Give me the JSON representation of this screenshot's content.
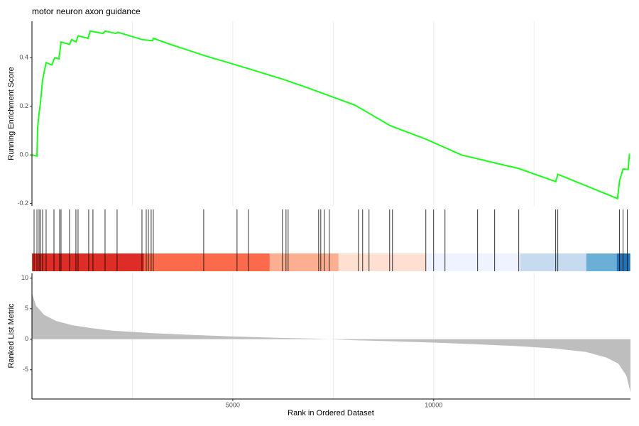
{
  "chart_data": [
    {
      "type": "line",
      "title": "motor neuron axon guidance",
      "ylabel": "Running Enrichment Score",
      "color": "#1aff1a",
      "xlim": [
        0,
        14900
      ],
      "ylim": [
        -0.21,
        0.55
      ],
      "yticks": [
        -0.2,
        {
          "value": 0,
          "label": "0.0"
        },
        0.2,
        0.4
      ],
      "xgrid": [
        2500,
        5000,
        7500,
        10000,
        12500
      ],
      "x": [
        0,
        124,
        141,
        177,
        212,
        265,
        353,
        495,
        565,
        671,
        724,
        936,
        989,
        1095,
        1148,
        1396,
        1449,
        1767,
        1820,
        2085,
        2138,
        2739,
        3004,
        3021,
        3445,
        4276,
        5389,
        6272,
        6802,
        8039,
        8922,
        9806,
        10689,
        11572,
        12102,
        13039,
        13092,
        14576,
        14629,
        14717,
        14841,
        14876
      ],
      "values": [
        0,
        -0.005,
        0.11,
        0.17,
        0.215,
        0.31,
        0.38,
        0.37,
        0.4,
        0.395,
        0.465,
        0.455,
        0.475,
        0.465,
        0.49,
        0.48,
        0.51,
        0.5,
        0.51,
        0.5,
        0.505,
        0.475,
        0.47,
        0.48,
        0.455,
        0.41,
        0.355,
        0.31,
        0.28,
        0.205,
        0.12,
        0.065,
        0,
        -0.035,
        -0.055,
        -0.11,
        -0.08,
        -0.18,
        -0.105,
        -0.058,
        -0.06,
        0.005
      ]
    },
    {
      "type": "rug",
      "xlim": [
        0,
        14900
      ],
      "hit_color": "#000000",
      "hits": [
        53,
        124,
        177,
        212,
        265,
        353,
        548,
        689,
        724,
        936,
        1095,
        1148,
        1413,
        1519,
        1820,
        2120,
        2739,
        2845,
        2898,
        2968,
        3021,
        4276,
        5106,
        5389,
        6237,
        6325,
        6378,
        7138,
        7191,
        7279,
        7403,
        8127,
        8233,
        8392,
        8905,
        8975,
        9806,
        10000,
        10283,
        11095,
        11519,
        12120,
        13039,
        13092,
        14629,
        14717,
        14823
      ],
      "bands": [
        {
          "start": 0,
          "end": 2792,
          "color": "#de2d26"
        },
        {
          "start": 2792,
          "end": 5919,
          "color": "#fb6a4a"
        },
        {
          "start": 5919,
          "end": 7633,
          "color": "#fcae91"
        },
        {
          "start": 7633,
          "end": 9806,
          "color": "#fee0d2"
        },
        {
          "start": 9806,
          "end": 12155,
          "color": "#eff3ff"
        },
        {
          "start": 12155,
          "end": 13799,
          "color": "#c6dbef"
        },
        {
          "start": 13799,
          "end": 14558,
          "color": "#6baed6"
        },
        {
          "start": 14558,
          "end": 14894,
          "color": "#2171b5"
        }
      ]
    },
    {
      "type": "area",
      "ylabel": "Ranked List Metric",
      "xlabel": "Rank in Ordered Dataset",
      "color": "#bebebe",
      "xlim": [
        0,
        14900
      ],
      "ylim": [
        -9.8,
        10.8
      ],
      "xticks": [
        5000,
        10000
      ],
      "yticks": [
        -5,
        0,
        5,
        10
      ],
      "x": [
        0,
        100,
        300,
        600,
        1000,
        1500,
        2000,
        3000,
        4000,
        5000,
        6000,
        7000,
        7400,
        8000,
        9000,
        10000,
        11000,
        12000,
        13000,
        13800,
        14300,
        14600,
        14800,
        14900
      ],
      "values": [
        7.6,
        5.5,
        4.0,
        3.0,
        2.3,
        1.8,
        1.4,
        1.0,
        0.7,
        0.45,
        0.25,
        0.1,
        0,
        -0.15,
        -0.35,
        -0.55,
        -0.8,
        -1.1,
        -1.5,
        -2.1,
        -3.0,
        -4.0,
        -6.0,
        -8.7
      ]
    }
  ]
}
